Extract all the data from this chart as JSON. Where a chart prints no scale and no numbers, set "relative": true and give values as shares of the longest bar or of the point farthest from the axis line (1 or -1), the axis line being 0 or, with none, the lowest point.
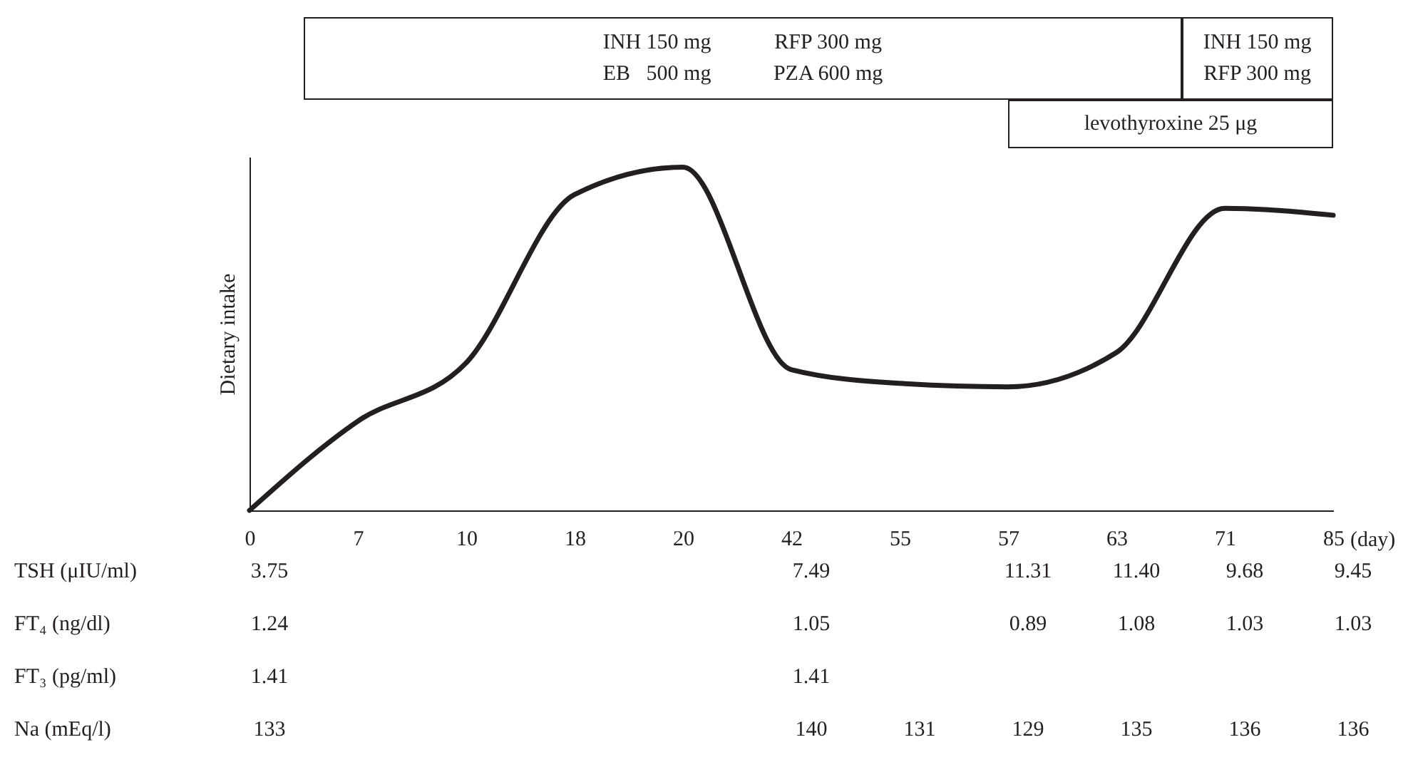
{
  "chart_data": {
    "type": "line",
    "relative": true,
    "ylabel": "Dietary intake",
    "xlabel": "(day)",
    "tick_labels": "x",
    "line_style": "solid",
    "categories": [
      "0",
      "7",
      "10",
      "18",
      "20",
      "42",
      "55",
      "57",
      "63",
      "71",
      "85"
    ],
    "series": [
      {
        "color": "#231f20",
        "values": [
          0,
          0.26,
          0.43,
          0.92,
          1,
          0.41,
          0.37,
          0.36,
          0.46,
          0.88,
          0.86
        ]
      }
    ],
    "annotations": [
      "INH 150 mg",
      "RFP 300 mg",
      "EB   500 mg",
      "PZA 600 mg",
      "INH 150 mg",
      "RFP 300 mg",
      "levothyroxine 25 μg",
      "TSH (μIU/ml)",
      "3.75",
      "7.49",
      "11.31",
      "11.40",
      "9.68",
      "9.45",
      "FT₄ (ng/dl)",
      "1.24",
      "1.05",
      "0.89",
      "1.08",
      "1.03",
      "1.03",
      "FT₃ (pg/ml)",
      "1.41",
      "1.41",
      "Na (mEq/l)",
      "133",
      "140",
      "131",
      "129",
      "135",
      "136",
      "136"
    ]
  }
}
